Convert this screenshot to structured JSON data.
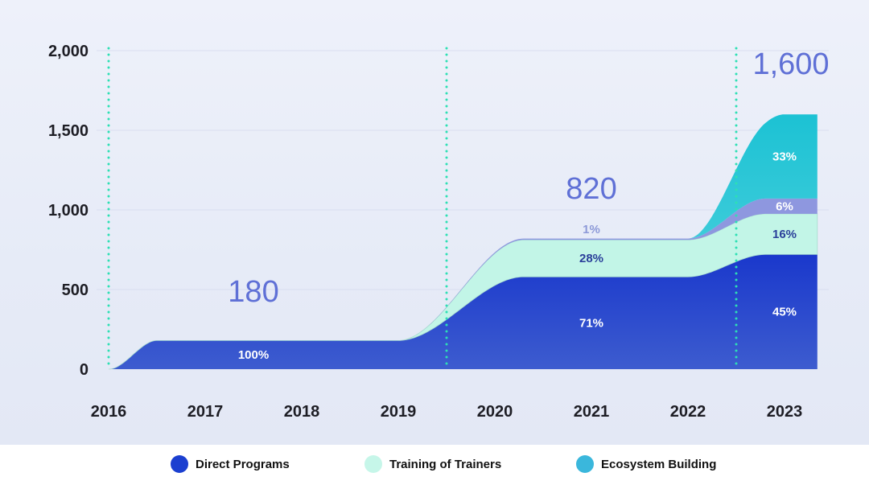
{
  "chart_data": {
    "type": "area",
    "stacked": true,
    "title": "",
    "xlabel": "",
    "ylabel": "",
    "x_ticks": [
      "2016",
      "2017",
      "2018",
      "2019",
      "2020",
      "2021",
      "2022",
      "2023"
    ],
    "y_ticks": [
      "0",
      "500",
      "1,000",
      "1,500",
      "2,000"
    ],
    "ylim": [
      0,
      2000
    ],
    "xlim": [
      2016,
      2023.35
    ],
    "grid": "horizontal",
    "legend_position": "bottom",
    "milestone_lines_x": [
      2016,
      2019.5,
      2022.5
    ],
    "series": [
      {
        "name": "Direct Programs",
        "color": "#2140cc",
        "points": [
          [
            2016,
            0
          ],
          [
            2016.5,
            180
          ],
          [
            2019,
            180
          ],
          [
            2020.3,
            580
          ],
          [
            2022,
            580
          ],
          [
            2022.8,
            720
          ],
          [
            2023.35,
            720
          ]
        ]
      },
      {
        "name": "Training of Trainers",
        "color": "#c2f5e7",
        "points": [
          [
            2016,
            0
          ],
          [
            2019,
            0
          ],
          [
            2020.3,
            232
          ],
          [
            2022,
            232
          ],
          [
            2022.8,
            255
          ],
          [
            2023.35,
            255
          ]
        ]
      },
      {
        "name": "",
        "color": "#8e97df",
        "points": [
          [
            2016,
            0
          ],
          [
            2019,
            0
          ],
          [
            2020.3,
            8
          ],
          [
            2022,
            8
          ],
          [
            2022.8,
            96
          ],
          [
            2023.35,
            96
          ]
        ]
      },
      {
        "name": "Ecosystem Building",
        "color": "#25c4d6",
        "points": [
          [
            2016,
            0
          ],
          [
            2022,
            0
          ],
          [
            2023.0,
            529
          ],
          [
            2023.35,
            529
          ]
        ]
      }
    ],
    "totals": [
      {
        "x": 2017.5,
        "value": 180,
        "label": "180"
      },
      {
        "x": 2021.0,
        "value": 820,
        "label": "820"
      },
      {
        "x": 2023.0,
        "value": 1600,
        "label": "1,600"
      }
    ],
    "share_labels": [
      {
        "series": 0,
        "x": 2017.5,
        "text": "100%",
        "color": "#ffffff"
      },
      {
        "series": 0,
        "x": 2021.0,
        "text": "71%",
        "color": "#ffffff"
      },
      {
        "series": 1,
        "x": 2021.0,
        "text": "28%",
        "color": "#2a3f9a"
      },
      {
        "series": 2,
        "x": 2021.0,
        "text": "1%",
        "color": "#8d9ad8",
        "above": true
      },
      {
        "series": 0,
        "x": 2023.0,
        "text": "45%",
        "color": "#ffffff"
      },
      {
        "series": 1,
        "x": 2023.0,
        "text": "16%",
        "color": "#2a3f9a"
      },
      {
        "series": 2,
        "x": 2023.0,
        "text": "6%",
        "color": "#ffffff"
      },
      {
        "series": 3,
        "x": 2023.0,
        "text": "33%",
        "color": "#ffffff"
      }
    ]
  },
  "legend": [
    {
      "label": "Direct Programs",
      "color": "#1b3fd0"
    },
    {
      "label": "Training of Trainers",
      "color": "#c6f6e9"
    },
    {
      "label": "Ecosystem Building",
      "color": "#3ab7dc"
    }
  ]
}
